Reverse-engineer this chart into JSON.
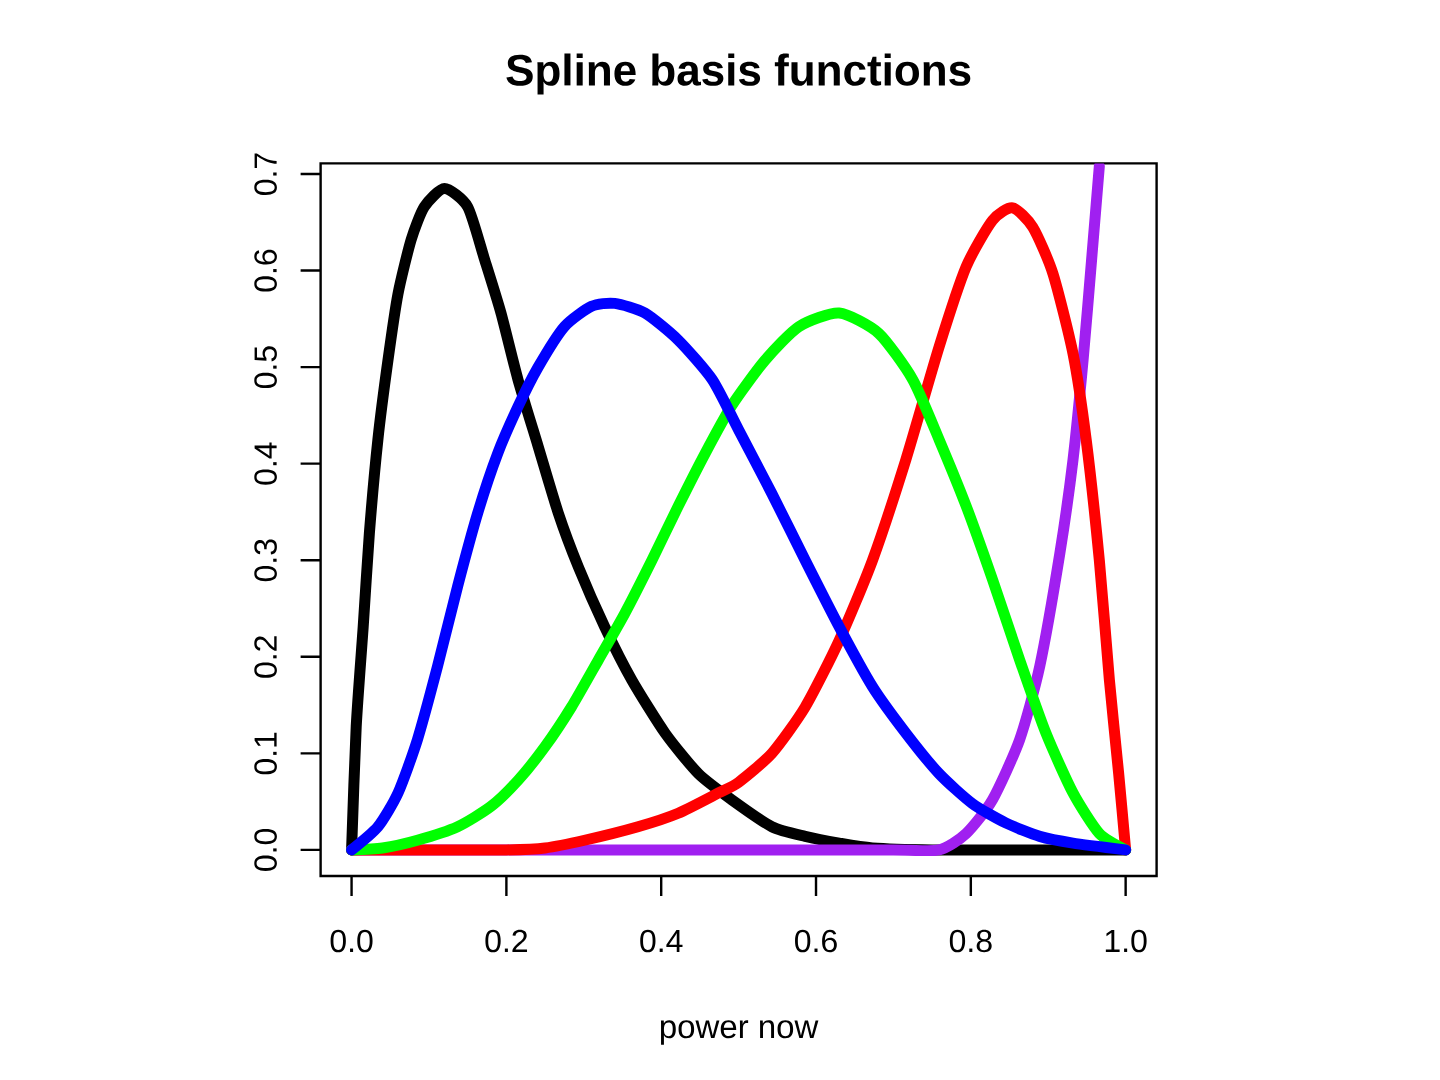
{
  "chart_data": {
    "type": "line",
    "title": "Spline basis functions",
    "xlabel": "power now",
    "xlim": [
      -0.04,
      1.04
    ],
    "ylim": [
      -0.027,
      0.711
    ],
    "xticks": [
      {
        "value": 0,
        "label": "0.0"
      },
      0.2,
      0.4,
      0.6,
      0.8,
      {
        "value": 1,
        "label": "1.0"
      }
    ],
    "yticks": [
      {
        "value": 0,
        "label": "0.0"
      },
      0.1,
      0.2,
      0.3,
      0.4,
      0.5,
      0.6,
      0.7
    ],
    "marker": "none",
    "line_style": "solid",
    "series": [
      {
        "color": "#000000",
        "x": [
          0,
          0.006,
          0.015,
          0.023,
          0.034,
          0.047,
          0.06,
          0.077,
          0.094,
          0.12,
          0.15,
          0.172,
          0.193,
          0.215,
          0.241,
          0.267,
          0.293,
          0.327,
          0.362,
          0.405,
          0.448,
          0.491,
          0.543,
          0.586,
          0.63,
          0.673,
          0.75,
          0.85,
          0.95,
          1.0
        ],
        "values": [
          0,
          0.128,
          0.231,
          0.328,
          0.425,
          0.507,
          0.576,
          0.632,
          0.666,
          0.685,
          0.666,
          0.611,
          0.556,
          0.487,
          0.418,
          0.349,
          0.293,
          0.231,
          0.176,
          0.121,
          0.079,
          0.052,
          0.024,
          0.014,
          0.007,
          0.002,
          0,
          0,
          0,
          0
        ]
      },
      {
        "color": "#a020f0",
        "x": [
          0,
          0.25,
          0.5,
          0.7,
          0.759,
          0.794,
          0.828,
          0.863,
          0.889,
          0.915,
          0.932,
          0.945,
          0.956,
          0.966
        ],
        "values": [
          0,
          0,
          0,
          0,
          0,
          0.017,
          0.052,
          0.114,
          0.19,
          0.307,
          0.404,
          0.507,
          0.611,
          0.708
        ]
      },
      {
        "color": "#ff0000",
        "x": [
          0,
          0.1,
          0.2,
          0.25,
          0.301,
          0.37,
          0.422,
          0.474,
          0.5,
          0.543,
          0.586,
          0.63,
          0.673,
          0.716,
          0.759,
          0.794,
          0.828,
          0.854,
          0.88,
          0.906,
          0.932,
          0.949,
          0.966,
          0.979,
          0.991,
          1.0
        ],
        "values": [
          0,
          0,
          0,
          0.002,
          0.01,
          0.024,
          0.038,
          0.059,
          0.07,
          0.1,
          0.148,
          0.217,
          0.3,
          0.404,
          0.521,
          0.604,
          0.652,
          0.665,
          0.645,
          0.597,
          0.514,
          0.425,
          0.3,
          0.176,
          0.079,
          0
        ]
      },
      {
        "color": "#00ff00",
        "x": [
          0,
          0.04,
          0.085,
          0.137,
          0.18,
          0.215,
          0.25,
          0.284,
          0.319,
          0.353,
          0.388,
          0.422,
          0.457,
          0.491,
          0.534,
          0.578,
          0.63,
          0.681,
          0.725,
          0.759,
          0.794,
          0.828,
          0.863,
          0.897,
          0.932,
          0.966,
          1.0
        ],
        "values": [
          0,
          0.002,
          0.01,
          0.024,
          0.045,
          0.072,
          0.107,
          0.148,
          0.197,
          0.245,
          0.3,
          0.356,
          0.411,
          0.46,
          0.507,
          0.542,
          0.556,
          0.535,
          0.487,
          0.425,
          0.356,
          0.28,
          0.197,
          0.121,
          0.059,
          0.017,
          0
        ]
      },
      {
        "color": "#0000ff",
        "x": [
          0,
          0.034,
          0.06,
          0.085,
          0.111,
          0.137,
          0.163,
          0.189,
          0.215,
          0.241,
          0.275,
          0.31,
          0.34,
          0.379,
          0.422,
          0.466,
          0.5,
          0.543,
          0.586,
          0.63,
          0.673,
          0.716,
          0.759,
          0.802,
          0.845,
          0.889,
          0.932,
          1.0
        ],
        "values": [
          0,
          0.024,
          0.059,
          0.114,
          0.19,
          0.273,
          0.349,
          0.411,
          0.459,
          0.5,
          0.542,
          0.563,
          0.566,
          0.556,
          0.528,
          0.487,
          0.435,
          0.369,
          0.3,
          0.231,
          0.169,
          0.121,
          0.079,
          0.048,
          0.028,
          0.014,
          0.007,
          0
        ]
      }
    ]
  }
}
